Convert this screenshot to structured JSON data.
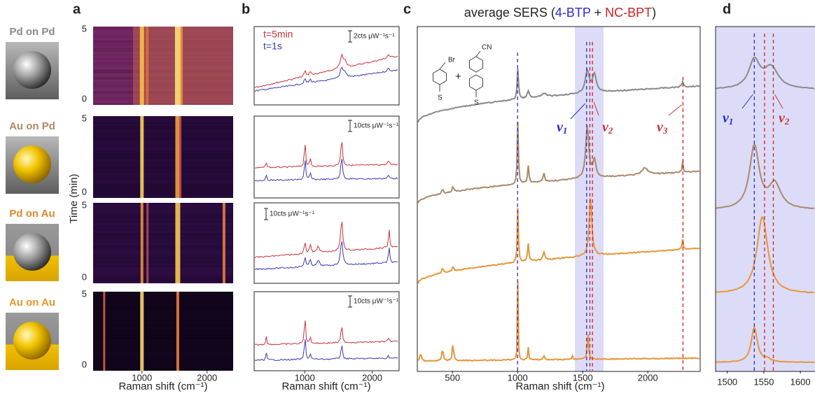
{
  "side_labels": [
    "Pd on Pd",
    "Au on Pd",
    "Pd on Au",
    "Au on Au"
  ],
  "panel_a": {
    "letter": "a",
    "y_label": "Time (min)",
    "y_ticks": [
      "5",
      "0"
    ],
    "x_ticks": [
      "1000",
      "2000"
    ],
    "x_label": "Raman shift (cm⁻¹)"
  },
  "panel_b": {
    "letter": "b",
    "legend": [
      "t=5min",
      "t=1s"
    ],
    "scale_bars": [
      "2cts μW⁻¹s⁻¹",
      "10cts μW⁻¹s⁻¹",
      "10cts μW⁻¹s⁻¹",
      "10cts μW⁻¹s⁻¹"
    ],
    "x_ticks": [
      "1000",
      "2000"
    ],
    "x_label": "Raman shift (cm⁻¹)"
  },
  "panel_c": {
    "letter": "c",
    "title": [
      "average SERS (",
      "4-BTP",
      " + ",
      "NC-BPT",
      ")"
    ],
    "molecule_labels": [
      "Br",
      "S",
      "CN",
      "S",
      "+"
    ],
    "modes": [
      {
        "symbol": "ν",
        "sub": "1"
      },
      {
        "symbol": "ν",
        "sub": "2"
      },
      {
        "symbol": "ν",
        "sub": "3"
      }
    ],
    "x_ticks": [
      "500",
      "1000",
      "1500",
      "2000"
    ],
    "x_label": "Raman shift (cm⁻¹)"
  },
  "panel_d": {
    "letter": "d",
    "modes": [
      {
        "symbol": "ν",
        "sub": "1"
      },
      {
        "symbol": "ν",
        "sub": "2"
      }
    ],
    "x_ticks": [
      "1500",
      "1550",
      "1600"
    ]
  }
}
